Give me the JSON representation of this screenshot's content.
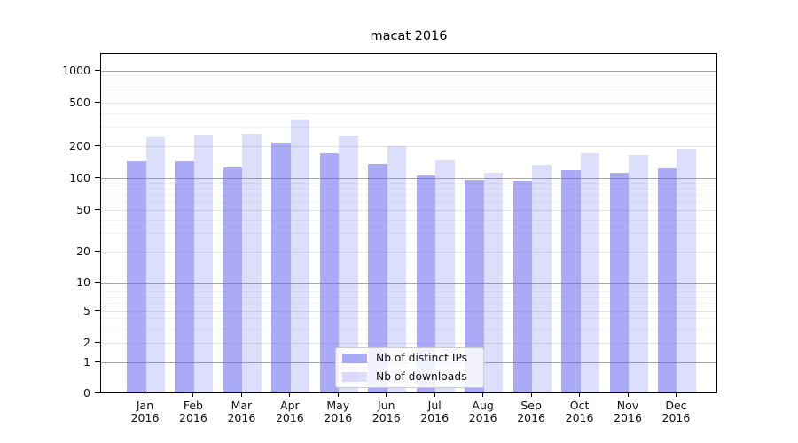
{
  "chart_data": {
    "type": "bar",
    "title": "macat 2016",
    "scale": "symlog",
    "grid": true,
    "legend_position": "lower center",
    "categories": [
      "Jan",
      "Feb",
      "Mar",
      "Apr",
      "May",
      "Jun",
      "Jul",
      "Aug",
      "Sep",
      "Oct",
      "Nov",
      "Dec"
    ],
    "category_year": "2016",
    "series": [
      {
        "name": "Nb of distinct IPs",
        "color": "rgba(100,100,240,0.55)",
        "values": [
          145,
          145,
          126,
          216,
          172,
          138,
          107,
          97,
          95,
          121,
          114,
          125
        ]
      },
      {
        "name": "Nb of downloads",
        "color": "rgba(100,100,240,0.22)",
        "values": [
          242,
          258,
          263,
          355,
          252,
          200,
          148,
          114,
          135,
          172,
          165,
          190
        ]
      }
    ],
    "yticks": [
      0,
      1,
      2,
      5,
      10,
      20,
      50,
      100,
      200,
      500,
      1000
    ],
    "ylim": [
      0,
      1400
    ],
    "gridline_colors": {
      "decade": "#a6a6a6",
      "labeled": "#e3e3e3",
      "minor": "#f3f3f3"
    },
    "axis_color": "#000000"
  }
}
